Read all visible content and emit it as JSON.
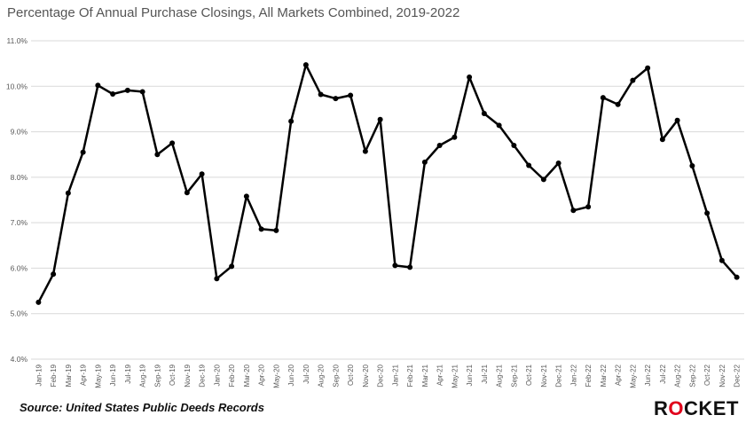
{
  "title": "Percentage Of Annual Purchase Closings, All Markets Combined, 2019-2022",
  "source": "Source: United States Public Deeds Records",
  "logo": {
    "pre": "R",
    "mid": "O",
    "post": "CKET"
  },
  "colors": {
    "line": "#000000",
    "grid": "#d9d9d9",
    "brand": "#e0001b",
    "text": "#595959"
  },
  "chart_data": {
    "type": "line",
    "title": "Percentage Of Annual Purchase Closings, All Markets Combined, 2019-2022",
    "xlabel": "",
    "ylabel": "",
    "ylim": [
      4.0,
      11.0
    ],
    "yticks": [
      "4.0%",
      "5.0%",
      "6.0%",
      "7.0%",
      "8.0%",
      "9.0%",
      "10.0%",
      "11.0%"
    ],
    "grid": true,
    "legend": "none",
    "categories": [
      "Jan-19",
      "Feb-19",
      "Mar-19",
      "Apr-19",
      "May-19",
      "Jun-19",
      "Jul-19",
      "Aug-19",
      "Sep-19",
      "Oct-19",
      "Nov-19",
      "Dec-19",
      "Jan-20",
      "Feb-20",
      "Mar-20",
      "Apr-20",
      "May-20",
      "Jun-20",
      "Jul-20",
      "Aug-20",
      "Sep-20",
      "Oct-20",
      "Nov-20",
      "Dec-20",
      "Jan-21",
      "Feb-21",
      "Mar-21",
      "Apr-21",
      "May-21",
      "Jun-21",
      "Jul-21",
      "Aug-21",
      "Sep-21",
      "Oct-21",
      "Nov-21",
      "Dec-21",
      "Jan-22",
      "Feb-22",
      "Mar-22",
      "Apr-22",
      "May-22",
      "Jun-22",
      "Jul-22",
      "Aug-22",
      "Sep-22",
      "Oct-22",
      "Nov-22",
      "Dec-22"
    ],
    "values": [
      5.25,
      5.87,
      7.65,
      8.55,
      10.02,
      9.83,
      9.91,
      9.88,
      8.5,
      8.75,
      7.66,
      8.07,
      5.77,
      6.04,
      7.58,
      6.86,
      6.83,
      9.23,
      10.47,
      9.82,
      9.73,
      9.8,
      8.57,
      9.27,
      6.06,
      6.02,
      8.33,
      8.7,
      8.88,
      10.2,
      9.4,
      9.14,
      8.7,
      8.26,
      7.95,
      8.31,
      7.27,
      7.35,
      9.75,
      9.6,
      10.13,
      10.4,
      8.83,
      9.25,
      8.25,
      7.21,
      6.17,
      5.8
    ]
  }
}
